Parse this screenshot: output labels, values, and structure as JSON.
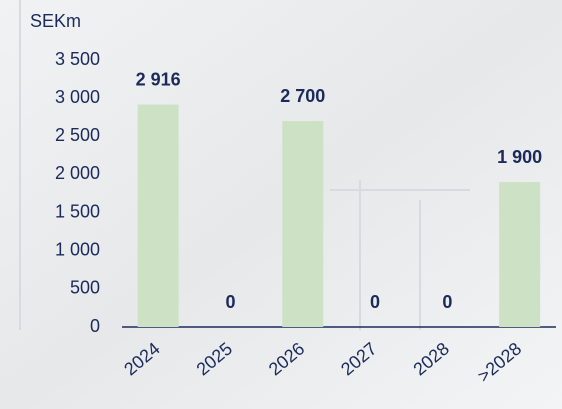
{
  "chart_data": {
    "type": "bar",
    "y_label": "SEKm",
    "categories": [
      "2024",
      "2025",
      "2026",
      "2027",
      "2028",
      ">2028"
    ],
    "values": [
      2916,
      0,
      2700,
      0,
      0,
      1900
    ],
    "value_labels": [
      "2 916",
      "0",
      "2 700",
      "0",
      "0",
      "1 900"
    ],
    "color": "#cde2c5",
    "ylim": [
      0,
      3500
    ],
    "yticks": [
      0,
      500,
      {
        "value": 1000,
        "label": "1 000"
      },
      {
        "value": 1500,
        "label": "1 500"
      },
      {
        "value": 2000,
        "label": "2 000"
      },
      {
        "value": 2500,
        "label": "2 500"
      },
      {
        "value": 3000,
        "label": "3 000"
      },
      {
        "value": 3500,
        "label": "3 500"
      }
    ]
  }
}
